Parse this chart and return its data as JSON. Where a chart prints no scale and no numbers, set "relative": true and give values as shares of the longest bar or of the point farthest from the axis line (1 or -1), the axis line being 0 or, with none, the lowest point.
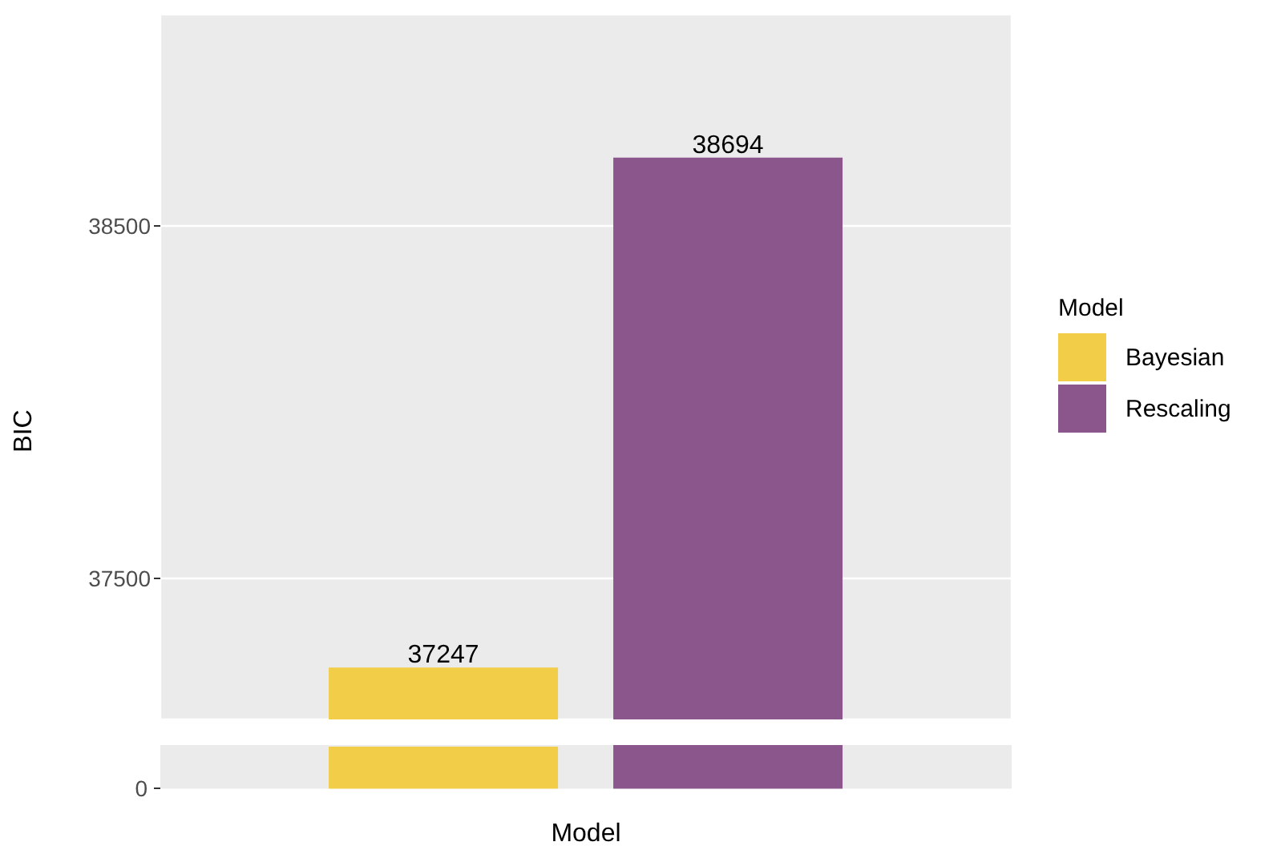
{
  "chart_data": [
    {
      "type": "bar",
      "ylabel": "BIC",
      "legend_title": "Model",
      "categories": [
        null,
        null
      ],
      "stacked": true,
      "series": [
        {
          "name": "Bayesian",
          "color": "#f1cd48",
          "values": [
            37247,
            null
          ]
        },
        {
          "name": "Rescaling",
          "color": "#8b568b",
          "values": [
            null,
            38694
          ]
        }
      ],
      "ylim": [
        37100,
        39100
      ],
      "yticks": [
        37500,
        38500
      ],
      "grid": true,
      "legend": "right",
      "data_labels": true,
      "tick_labels": "y"
    },
    {
      "type": "bar",
      "xlabel": "Model",
      "categories": [
        null,
        null
      ],
      "stacked": true,
      "relative": true,
      "series": [
        {
          "color": "#f1cd48",
          "values": [
            0.9626,
            null
          ]
        },
        {
          "color": "#8b568b",
          "values": [
            null,
            1
          ]
        }
      ],
      "ref_lines": [
        {
          "axis": "y",
          "value": 0,
          "label": "0",
          "color": "#ffffff"
        }
      ],
      "tick_labels": false
    }
  ]
}
